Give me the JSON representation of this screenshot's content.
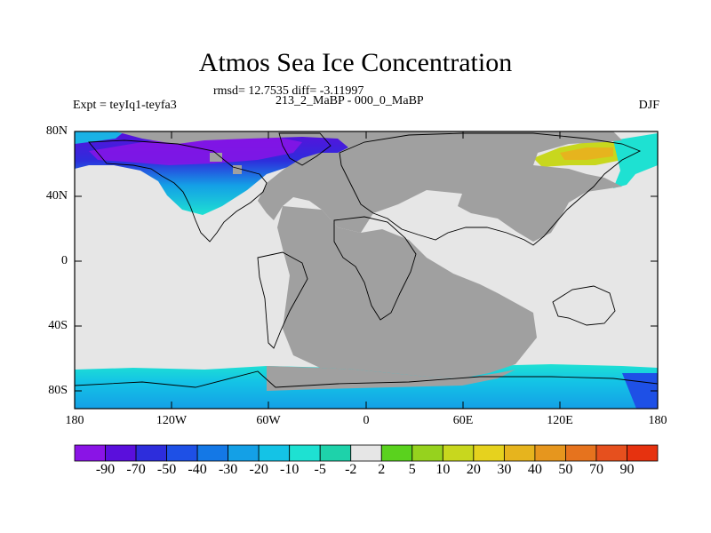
{
  "header": {
    "title": "Atmos Sea Ice Concentration",
    "stats": "rmsd= 12.7535 diff= -3.11997",
    "experiment": "Expt = teyIq1-teyfa3",
    "period": "213_2_MaBP - 000_0_MaBP",
    "season": "DJF"
  },
  "axes": {
    "lat_ticks": [
      "80N",
      "40N",
      "0",
      "40S",
      "80S"
    ],
    "lon_ticks": [
      "180",
      "120W",
      "60W",
      "0",
      "60E",
      "120E",
      "180"
    ]
  },
  "colorbar": {
    "labels": [
      "-90",
      "-70",
      "-50",
      "-40",
      "-30",
      "-20",
      "-10",
      "-5",
      "-2",
      "2",
      "5",
      "10",
      "20",
      "30",
      "40",
      "50",
      "70",
      "90"
    ],
    "colors": [
      "#8a14e6",
      "#5a0fdc",
      "#2d2ddc",
      "#1e50e6",
      "#1478e6",
      "#14a0e6",
      "#14c3e6",
      "#1ee1d2",
      "#1ed2aa",
      "#e6e6e6",
      "#5ad21e",
      "#96d21e",
      "#c8d71e",
      "#e6d21e",
      "#e6b41e",
      "#e6961e",
      "#e6731e",
      "#e6501e",
      "#e6320f"
    ]
  },
  "colors": {
    "land": "#a0a0a0",
    "near_zero": "#e6e6e6"
  }
}
